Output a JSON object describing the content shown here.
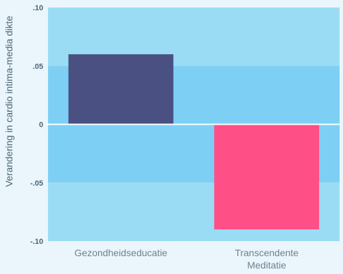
{
  "chart_data": {
    "type": "bar",
    "title": "",
    "xlabel": "",
    "ylabel": "Verandering in cardio intima-media dikte",
    "categories": [
      {
        "lines": [
          "Gezondheidseducatie"
        ]
      },
      {
        "lines": [
          "Transcendente",
          "Meditatie"
        ]
      }
    ],
    "values": [
      0.06,
      -0.09
    ],
    "ylim": [
      -0.1,
      0.1
    ],
    "yticks": [
      {
        "value": 0.1,
        "label": ".10"
      },
      {
        "value": 0.05,
        "label": ".05"
      },
      {
        "value": 0,
        "label": "0"
      },
      {
        "value": -0.05,
        "label": "-.05"
      },
      {
        "value": -0.1,
        "label": "-.10"
      }
    ],
    "bar_colors": [
      "#4a5082",
      "#ff4f87"
    ],
    "band_colors": [
      "#9bdcf5",
      "#7ecff4"
    ],
    "zero_line_color": "#ffffff",
    "grid": false
  }
}
